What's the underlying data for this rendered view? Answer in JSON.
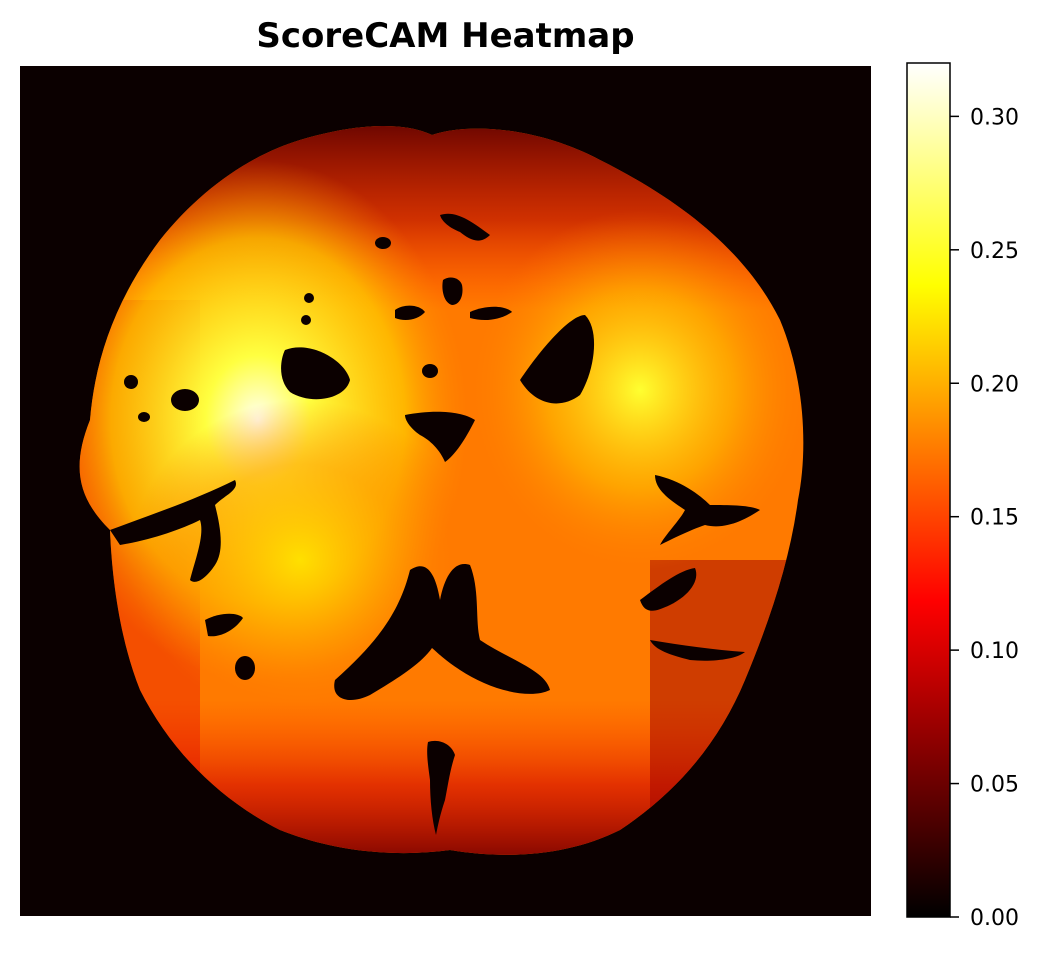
{
  "chart_data": {
    "type": "heatmap",
    "title": "ScoreCAM Heatmap",
    "colormap": "hot",
    "colorbar": {
      "range": [
        0.0,
        0.32
      ],
      "ticks": [
        {
          "value": 0.0,
          "label": "0.00"
        },
        {
          "value": 0.05,
          "label": "0.05"
        },
        {
          "value": 0.1,
          "label": "0.10"
        },
        {
          "value": 0.15,
          "label": "0.15"
        },
        {
          "value": 0.2,
          "label": "0.20"
        },
        {
          "value": 0.25,
          "label": "0.25"
        },
        {
          "value": 0.3,
          "label": "0.30"
        }
      ]
    },
    "background_value": 0.005,
    "colors": {
      "c0": "#0b0000",
      "c1": "#5a0000",
      "c2": "#b00000",
      "c3": "#ff1a00",
      "c4": "#ff7a00",
      "c5": "#ffc400",
      "c6": "#ffff1a",
      "c7": "#ffffe6"
    }
  }
}
